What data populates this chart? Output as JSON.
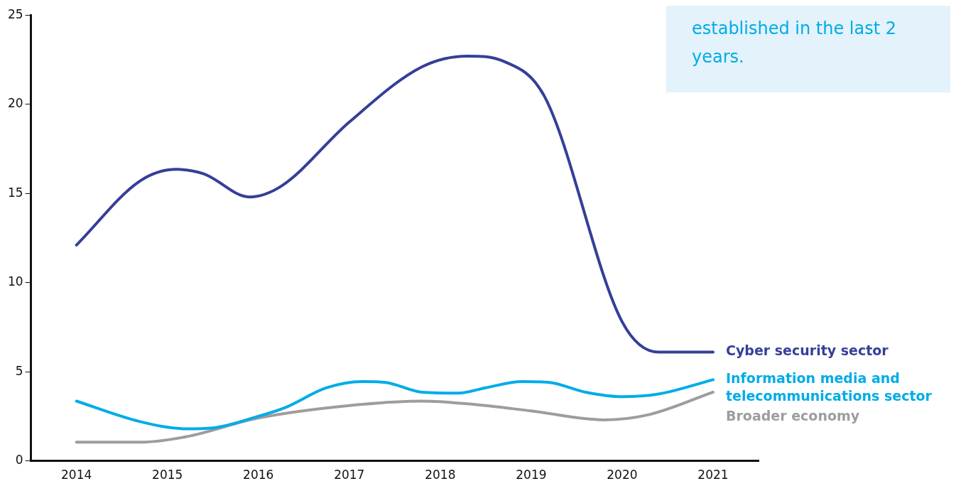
{
  "chart_data": {
    "type": "line",
    "xlim": [
      2013.5,
      2021.5
    ],
    "xticks": [
      2014,
      2015,
      2016,
      2017,
      2018,
      2019,
      2020,
      2021
    ],
    "ylim": [
      0,
      25
    ],
    "yticks": [
      0,
      5,
      10,
      15,
      20,
      25
    ],
    "grid": false,
    "legend": false,
    "marker": "none",
    "line_style": "solid",
    "annotations": [
      "established in the last 2 years."
    ],
    "series": [
      {
        "name": "Cyber security sector",
        "color": "#353f98",
        "x": [
          2014,
          2014.7,
          2015.1,
          2015.4,
          2015.9,
          2016.25,
          2017,
          2017.8,
          2018.3,
          2018.7,
          2019.15,
          2020,
          2020.4,
          2021
        ],
        "values": [
          12.1,
          15.7,
          16.35,
          16.1,
          14.8,
          15.4,
          19,
          22.1,
          22.7,
          22.4,
          20.4,
          7.8,
          6.1,
          6.1
        ]
      },
      {
        "name": "Information media and telecommunications sector",
        "color": "#00ace6",
        "x": [
          2014,
          2014.7,
          2015.2,
          2015.5,
          2016,
          2016.3,
          2016.75,
          2017.15,
          2017.4,
          2017.8,
          2018.2,
          2018.5,
          2018.9,
          2019.2,
          2019.6,
          2020,
          2020.4,
          2021
        ],
        "values": [
          3.35,
          2.2,
          1.8,
          1.85,
          2.5,
          3,
          4.1,
          4.45,
          4.4,
          3.85,
          3.8,
          4.1,
          4.45,
          4.4,
          3.85,
          3.6,
          3.75,
          4.55
        ]
      },
      {
        "name": "Broader economy",
        "color": "#9d9d9d",
        "x": [
          2014,
          2014.7,
          2015.2,
          2016,
          2017,
          2017.8,
          2018.3,
          2019,
          2019.8,
          2020.3,
          2021
        ],
        "values": [
          1.05,
          1.05,
          1.35,
          2.4,
          3.1,
          3.35,
          3.2,
          2.8,
          2.3,
          2.6,
          3.85
        ]
      }
    ]
  }
}
